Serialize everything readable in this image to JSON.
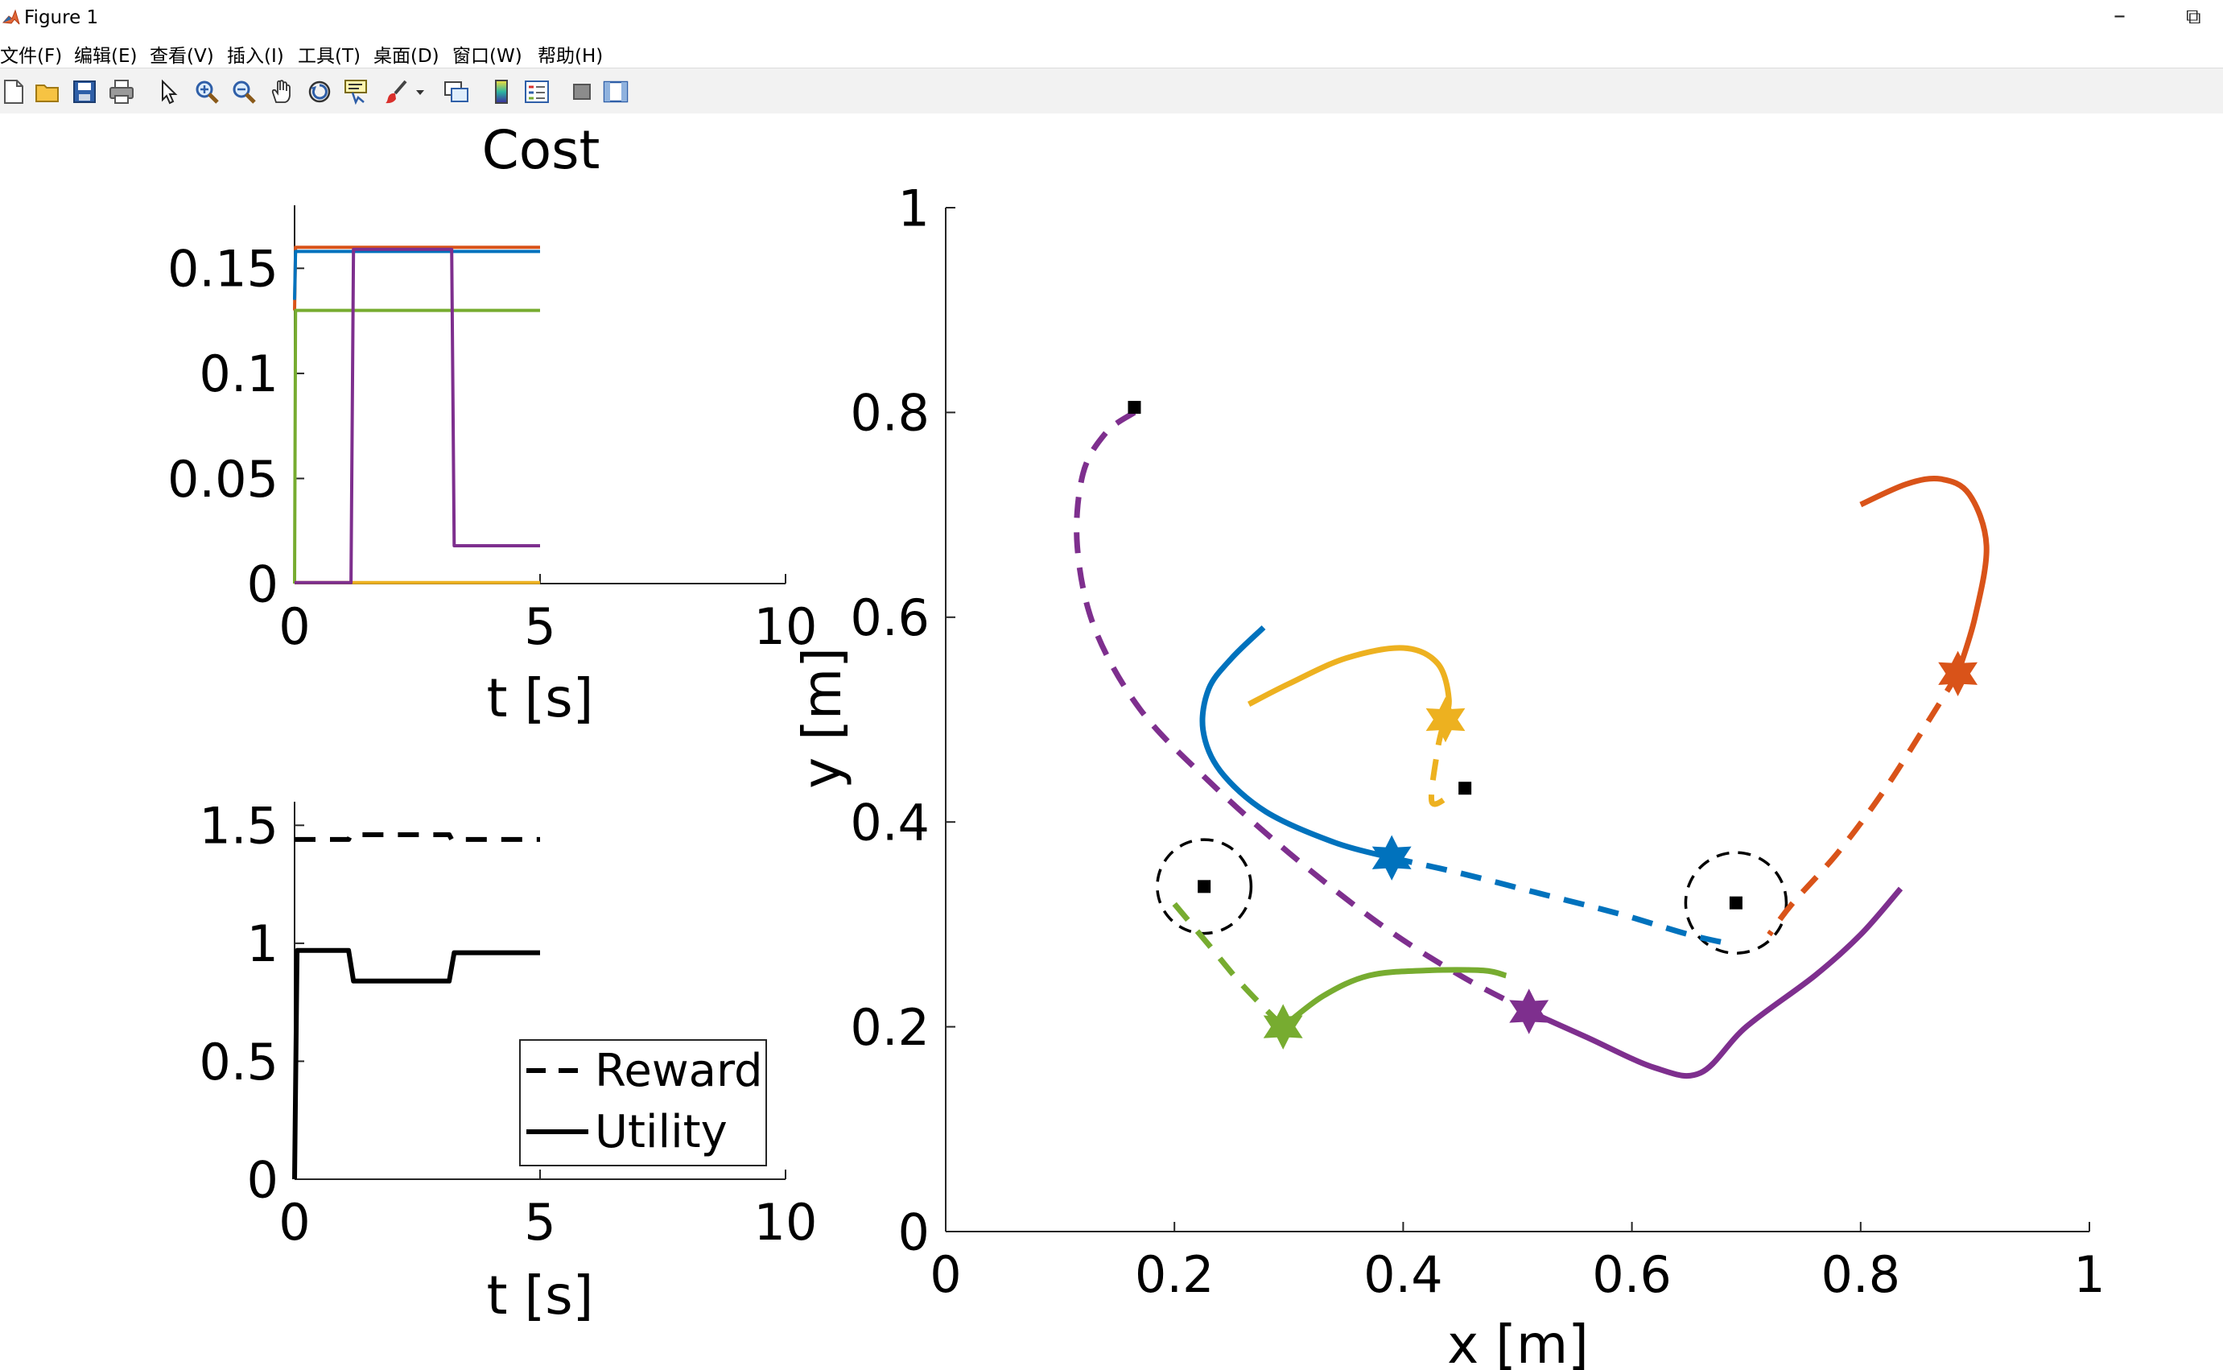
{
  "window": {
    "title": "Figure 1",
    "minimize_glyph": "–",
    "restore_glyph": "⧉"
  },
  "menu": {
    "items": [
      "文件(F)",
      "编辑(E)",
      "查看(V)",
      "插入(I)",
      "工具(T)",
      "桌面(D)",
      "窗口(W)",
      "帮助(H)"
    ]
  },
  "toolbar": {
    "icons": [
      "new-figure-icon",
      "open-file-icon",
      "save-icon",
      "print-icon",
      "pointer-icon",
      "zoom-in-icon",
      "zoom-out-icon",
      "pan-icon",
      "rotate-3d-icon",
      "data-cursor-icon",
      "brush-icon",
      "brush-dropdown-icon",
      "link-plot-icon",
      "colorbar-icon",
      "legend-icon",
      "hide-plot-tools-icon",
      "show-plot-tools-icon"
    ]
  },
  "colors": {
    "blue": "#0072BD",
    "orange": "#D95319",
    "yellow": "#EDB120",
    "purple": "#7E2F8E",
    "green": "#77AC30",
    "black": "#000000"
  },
  "chart_data": [
    {
      "id": "cost",
      "type": "line",
      "title": "Cost",
      "xlabel": "t [s]",
      "ylabel": "",
      "xlim": [
        0,
        10
      ],
      "ylim": [
        0,
        0.18
      ],
      "xticks": [
        0,
        5,
        10
      ],
      "xtick_labels": [
        "0",
        "5",
        "10"
      ],
      "yticks": [
        0,
        0.05,
        0.1,
        0.15
      ],
      "ytick_labels": [
        "0",
        "0.05",
        "0.1",
        "0.15"
      ],
      "series": [
        {
          "name": "agent-orange",
          "color": "#D95319",
          "x": [
            0,
            0.02,
            5
          ],
          "y": [
            0.13,
            0.16,
            0.16
          ]
        },
        {
          "name": "agent-blue",
          "color": "#0072BD",
          "x": [
            0,
            0.02,
            5
          ],
          "y": [
            0.135,
            0.158,
            0.158
          ]
        },
        {
          "name": "agent-green",
          "color": "#77AC30",
          "x": [
            0,
            0.02,
            5
          ],
          "y": [
            0,
            0.13,
            0.13
          ]
        },
        {
          "name": "agent-yellow",
          "color": "#EDB120",
          "x": [
            0,
            5
          ],
          "y": [
            0.0005,
            0.0005
          ]
        },
        {
          "name": "agent-purple",
          "color": "#7E2F8E",
          "x": [
            0,
            1.15,
            1.2,
            3.2,
            3.25,
            5
          ],
          "y": [
            0.0005,
            0.0005,
            0.159,
            0.159,
            0.018,
            0.018
          ]
        }
      ]
    },
    {
      "id": "reward-utility",
      "type": "line",
      "title": "",
      "xlabel": "t [s]",
      "ylabel": "",
      "xlim": [
        0,
        10
      ],
      "ylim": [
        0,
        1.6
      ],
      "xticks": [
        0,
        5,
        10
      ],
      "xtick_labels": [
        "0",
        "5",
        "10"
      ],
      "yticks": [
        0,
        0.5,
        1,
        1.5
      ],
      "ytick_labels": [
        "0",
        "0.5",
        "1",
        "1.5"
      ],
      "legend_position": "bottom-right",
      "series": [
        {
          "name": "Reward",
          "color": "#000000",
          "dash": true,
          "x": [
            0,
            1.1,
            1.15,
            3.15,
            3.2,
            5
          ],
          "y": [
            1.44,
            1.44,
            1.46,
            1.46,
            1.44,
            1.44
          ]
        },
        {
          "name": "Utility",
          "color": "#000000",
          "dash": false,
          "x": [
            0,
            0.05,
            1.1,
            1.2,
            3.15,
            3.25,
            5
          ],
          "y": [
            0,
            0.97,
            0.97,
            0.84,
            0.84,
            0.96,
            0.96
          ]
        }
      ]
    },
    {
      "id": "trajectories",
      "type": "line",
      "title": "",
      "xlabel": "x [m]",
      "ylabel": "y [m]",
      "xlim": [
        0,
        1
      ],
      "ylim": [
        0,
        1
      ],
      "xticks": [
        0,
        0.2,
        0.4,
        0.6,
        0.8,
        1
      ],
      "xtick_labels": [
        "0",
        "0.2",
        "0.4",
        "0.6",
        "0.8",
        "1"
      ],
      "yticks": [
        0,
        0.2,
        0.4,
        0.6,
        0.8,
        1
      ],
      "ytick_labels": [
        "0",
        "0.2",
        "0.4",
        "0.6",
        "0.8",
        "1"
      ],
      "series": [
        {
          "name": "purple-dashed",
          "color": "#7E2F8E",
          "dash": true,
          "x": [
            0.165,
            0.14,
            0.12,
            0.115,
            0.13,
            0.17,
            0.23,
            0.3,
            0.38,
            0.45,
            0.51
          ],
          "y": [
            0.8,
            0.78,
            0.74,
            0.67,
            0.59,
            0.51,
            0.44,
            0.37,
            0.3,
            0.25,
            0.215
          ]
        },
        {
          "name": "purple-solid",
          "color": "#7E2F8E",
          "dash": false,
          "x": [
            0.51,
            0.56,
            0.62,
            0.66,
            0.7,
            0.76,
            0.8,
            0.835
          ],
          "y": [
            0.215,
            0.19,
            0.16,
            0.155,
            0.2,
            0.25,
            0.29,
            0.335
          ]
        },
        {
          "name": "orange-solid",
          "color": "#D95319",
          "dash": false,
          "x": [
            0.8,
            0.84,
            0.87,
            0.895,
            0.91,
            0.9,
            0.885
          ],
          "y": [
            0.71,
            0.73,
            0.735,
            0.72,
            0.67,
            0.6,
            0.545
          ]
        },
        {
          "name": "orange-dashed",
          "color": "#D95319",
          "dash": true,
          "x": [
            0.885,
            0.86,
            0.82,
            0.78,
            0.74,
            0.72
          ],
          "y": [
            0.545,
            0.5,
            0.43,
            0.37,
            0.32,
            0.29
          ]
        },
        {
          "name": "blue-solid",
          "color": "#0072BD",
          "dash": false,
          "x": [
            0.278,
            0.25,
            0.23,
            0.225,
            0.24,
            0.28,
            0.34,
            0.39
          ],
          "y": [
            0.59,
            0.56,
            0.53,
            0.49,
            0.45,
            0.41,
            0.38,
            0.365
          ]
        },
        {
          "name": "blue-dashed",
          "color": "#0072BD",
          "dash": true,
          "x": [
            0.39,
            0.45,
            0.52,
            0.59,
            0.65,
            0.69
          ],
          "y": [
            0.365,
            0.35,
            0.33,
            0.31,
            0.29,
            0.28
          ]
        },
        {
          "name": "yellow-solid",
          "color": "#EDB120",
          "dash": false,
          "x": [
            0.265,
            0.3,
            0.35,
            0.4,
            0.43,
            0.44,
            0.435
          ],
          "y": [
            0.515,
            0.535,
            0.56,
            0.57,
            0.555,
            0.52,
            0.495
          ]
        },
        {
          "name": "yellow-dashed",
          "color": "#EDB120",
          "dash": true,
          "x": [
            0.435,
            0.43,
            0.425,
            0.44
          ],
          "y": [
            0.495,
            0.47,
            0.42,
            0.425
          ]
        },
        {
          "name": "green-dashed",
          "color": "#77AC30",
          "dash": true,
          "x": [
            0.2,
            0.23,
            0.26,
            0.295
          ],
          "y": [
            0.32,
            0.28,
            0.24,
            0.2
          ]
        },
        {
          "name": "green-solid",
          "color": "#77AC30",
          "dash": false,
          "x": [
            0.295,
            0.33,
            0.37,
            0.42,
            0.47,
            0.49
          ],
          "y": [
            0.2,
            0.23,
            0.25,
            0.255,
            0.255,
            0.25
          ]
        }
      ],
      "stars": [
        {
          "color": "#7E2F8E",
          "x": 0.51,
          "y": 0.215
        },
        {
          "color": "#D95319",
          "x": 0.885,
          "y": 0.545
        },
        {
          "color": "#0072BD",
          "x": 0.39,
          "y": 0.365
        },
        {
          "color": "#EDB120",
          "x": 0.437,
          "y": 0.5
        },
        {
          "color": "#77AC30",
          "x": 0.295,
          "y": 0.2
        }
      ],
      "goals": [
        {
          "x": 0.165,
          "y": 0.805
        },
        {
          "x": 0.454,
          "y": 0.433
        },
        {
          "x": 0.226,
          "y": 0.337
        },
        {
          "x": 0.691,
          "y": 0.321
        }
      ],
      "obstacles": [
        {
          "x": 0.226,
          "y": 0.337,
          "r": 0.041
        },
        {
          "x": 0.691,
          "y": 0.321,
          "r": 0.044
        }
      ]
    }
  ]
}
